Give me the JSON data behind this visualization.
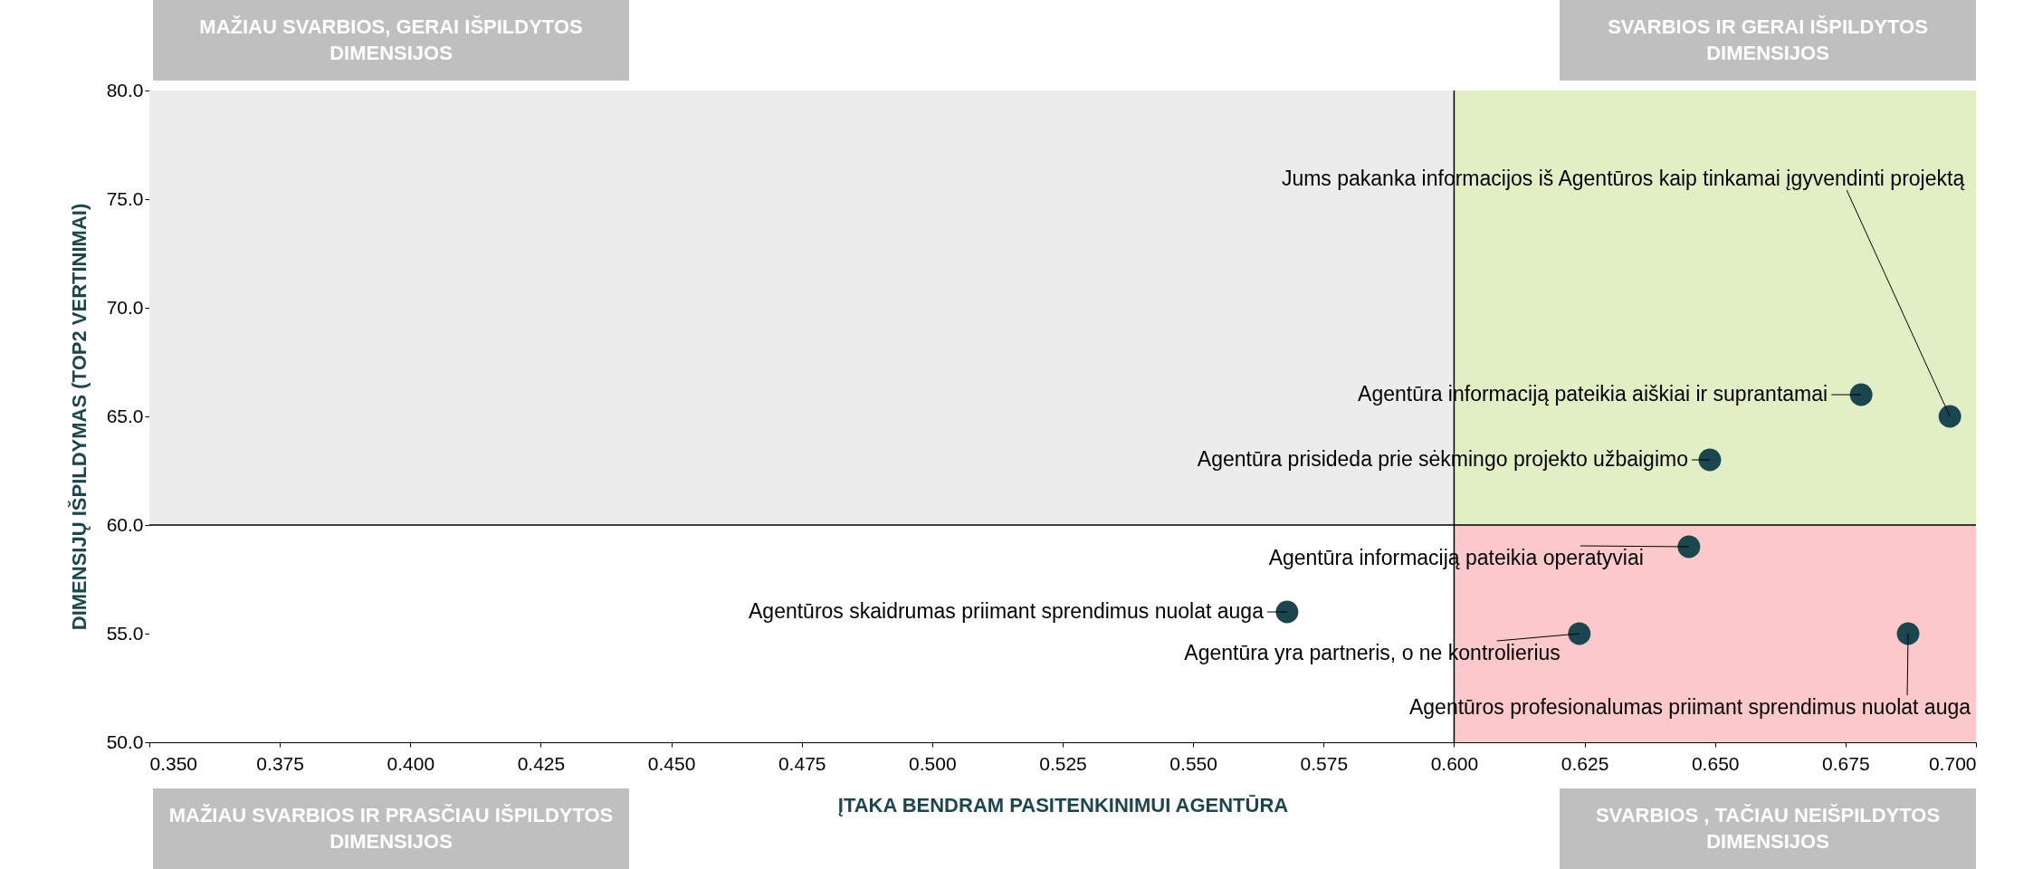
{
  "chart_data": {
    "type": "scatter",
    "xlabel": "ĮTAKA BENDRAM PASITENKINIMUI AGENTŪRA",
    "ylabel": "DIMENSIJŲ IŠPILDYMAS (TOP2 VERTINIMAI)",
    "xlim": [
      0.35,
      0.7
    ],
    "xticks": [
      {
        "value": 0.35,
        "label": "0.350"
      },
      {
        "value": 0.375,
        "label": "0.375"
      },
      {
        "value": 0.4,
        "label": "0.400"
      },
      {
        "value": 0.425,
        "label": "0.425"
      },
      {
        "value": 0.45,
        "label": "0.450"
      },
      {
        "value": 0.475,
        "label": "0.475"
      },
      {
        "value": 0.5,
        "label": "0.500"
      },
      {
        "value": 0.525,
        "label": "0.525"
      },
      {
        "value": 0.55,
        "label": "0.550"
      },
      {
        "value": 0.575,
        "label": "0.575"
      },
      {
        "value": 0.6,
        "label": "0.600"
      },
      {
        "value": 0.625,
        "label": "0.625"
      },
      {
        "value": 0.65,
        "label": "0.650"
      },
      {
        "value": 0.675,
        "label": "0.675"
      },
      {
        "value": 0.7,
        "label": "0.700"
      }
    ],
    "ylim": [
      50,
      80
    ],
    "yticks": [
      {
        "value": 50,
        "label": "50.0"
      },
      {
        "value": 55,
        "label": "55.0"
      },
      {
        "value": 60,
        "label": "60.0"
      },
      {
        "value": 65,
        "label": "65.0"
      },
      {
        "value": 70,
        "label": "70.0"
      },
      {
        "value": 75,
        "label": "75.0"
      },
      {
        "value": 80,
        "label": "80.0"
      }
    ],
    "marker": "circle",
    "grid": false,
    "ref_lines": [
      {
        "axis": "x",
        "value": 0.6,
        "color": "#000000"
      },
      {
        "axis": "y",
        "value": 60,
        "color": "#000000"
      }
    ],
    "series": [
      {
        "type": "area",
        "marker": "none",
        "color": "#ececec",
        "x": [
          0.35,
          0.6
        ],
        "values": [
          80,
          80
        ]
      },
      {
        "type": "area",
        "marker": "none",
        "color": "#ffffff",
        "x": [
          0.35,
          0.6
        ],
        "values": [
          60,
          60
        ]
      },
      {
        "type": "area",
        "marker": "none",
        "color": "#e2efc4",
        "x": [
          0.6,
          0.7
        ],
        "values": [
          80,
          80
        ]
      },
      {
        "type": "area",
        "marker": "none",
        "color": "#fbc9c9",
        "x": [
          0.6,
          0.7
        ],
        "values": [
          60,
          60
        ]
      },
      {
        "name": "Jums pakanka informacijos iš Agentūros kaip tinkamai įgyvendinti projektą",
        "color": "#1b4650",
        "x": [
          0.695
        ],
        "values": [
          65
        ]
      },
      {
        "name": "Agentūra informaciją pateikia aiškiai ir suprantamai",
        "color": "#1b4650",
        "x": [
          0.678
        ],
        "values": [
          66
        ]
      },
      {
        "name": "Agentūra prisideda prie sėkmingo projekto užbaigimo",
        "color": "#1b4650",
        "x": [
          0.649
        ],
        "values": [
          63
        ]
      },
      {
        "name": "Agentūra informaciją pateikia operatyviai",
        "color": "#1b4650",
        "x": [
          0.645
        ],
        "values": [
          59
        ]
      },
      {
        "name": "Agentūros skaidrumas priimant sprendimus nuolat auga",
        "color": "#1b4650",
        "x": [
          0.568
        ],
        "values": [
          56
        ]
      },
      {
        "name": "Agentūra yra partneris, o ne kontrolierius",
        "color": "#1b4650",
        "x": [
          0.624
        ],
        "values": [
          55
        ]
      },
      {
        "name": "Agentūros profesionalumas priimant sprendimus nuolat auga",
        "color": "#1b4650",
        "x": [
          0.687
        ],
        "values": [
          55
        ]
      }
    ],
    "annotations": [
      "MAŽIAU SVARBIOS, GERAI IŠPILDYTOS DIMENSIJOS",
      "SVARBIOS IR GERAI IŠPILDYTOS DIMENSIJOS",
      "MAŽIAU SVARBIOS IR PRASČIAU IŠPILDYTOS DIMENSIJOS",
      "SVARBIOS , TAČIAU NEIŠPILDYTOS DIMENSIJOS"
    ]
  }
}
